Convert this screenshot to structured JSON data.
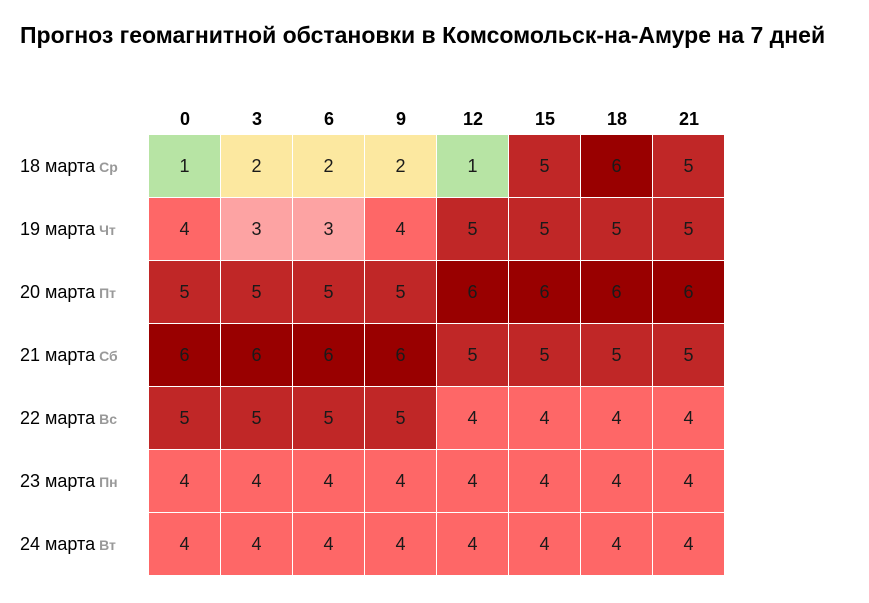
{
  "title": "Прогноз геомагнитной обстановки в Комсомольск-на-Амуре на 7 дней",
  "chart_data": {
    "type": "heatmap",
    "title": "Прогноз геомагнитной обстановки в Комсомольск-на-Амуре на 7 дней",
    "hours": [
      "0",
      "3",
      "6",
      "9",
      "12",
      "15",
      "18",
      "21"
    ],
    "days": [
      {
        "date": "18 марта",
        "weekday": "Ср",
        "values": [
          1,
          2,
          2,
          2,
          1,
          5,
          6,
          5
        ]
      },
      {
        "date": "19 марта",
        "weekday": "Чт",
        "values": [
          4,
          3,
          3,
          4,
          5,
          5,
          5,
          5
        ]
      },
      {
        "date": "20 марта",
        "weekday": "Пт",
        "values": [
          5,
          5,
          5,
          5,
          6,
          6,
          6,
          6
        ]
      },
      {
        "date": "21 марта",
        "weekday": "Сб",
        "values": [
          6,
          6,
          6,
          6,
          5,
          5,
          5,
          5
        ]
      },
      {
        "date": "22 марта",
        "weekday": "Вс",
        "values": [
          5,
          5,
          5,
          5,
          4,
          4,
          4,
          4
        ]
      },
      {
        "date": "23 марта",
        "weekday": "Пн",
        "values": [
          4,
          4,
          4,
          4,
          4,
          4,
          4,
          4
        ]
      },
      {
        "date": "24 марта",
        "weekday": "Вт",
        "values": [
          4,
          4,
          4,
          4,
          4,
          4,
          4,
          4
        ]
      }
    ],
    "level_colors": {
      "1": "#b7e4a4",
      "2": "#fce8a0",
      "3": "#fda3a3",
      "4": "#fe6767",
      "5": "#c02727",
      "6": "#990000"
    }
  }
}
